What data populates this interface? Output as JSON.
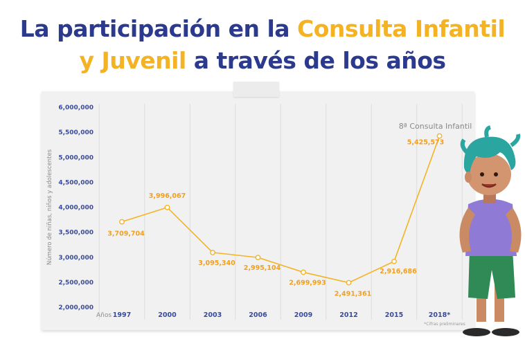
{
  "title": {
    "line1_prefix": "La participación en la ",
    "line1_highlight": "Consulta Infantil",
    "line2_highlight": "y Juvenil",
    "line2_suffix": " a través de los años"
  },
  "colors": {
    "title_blue": "#2b3a8c",
    "title_yellow": "#f4b324",
    "line": "#f4b324",
    "data_label": "#f0a020",
    "tick_blue": "#3a4a9c"
  },
  "chart_data": {
    "type": "line",
    "x_prefix": "Años",
    "categories": [
      "1997",
      "2000",
      "2003",
      "2006",
      "2009",
      "2012",
      "2015",
      "2018*"
    ],
    "values": [
      3709704,
      3996067,
      3095340,
      2995104,
      2699993,
      2491361,
      2916686,
      5425573
    ],
    "value_labels": [
      "3,709,704",
      "3,996,067",
      "3,095,340",
      "2,995,104",
      "2,699,993",
      "2,491,361",
      "2,916,686",
      "5,425,573"
    ],
    "ylabel": "Número de niñas, niños y adolescentes",
    "ylim": [
      2000000,
      6000000
    ],
    "yticks": [
      2000000,
      2500000,
      3000000,
      3500000,
      4000000,
      4500000,
      5000000,
      5500000,
      6000000
    ],
    "ytick_labels": [
      "2,000,000",
      "2,500,000",
      "3,000,000",
      "3,500,000",
      "4,000,000",
      "4,500,000",
      "5,000,000",
      "5,500,000",
      "6,000,000"
    ],
    "grid": "vertical",
    "annotation": "8ª Consulta Infantil",
    "footnote": "*Cifras preliminares"
  }
}
